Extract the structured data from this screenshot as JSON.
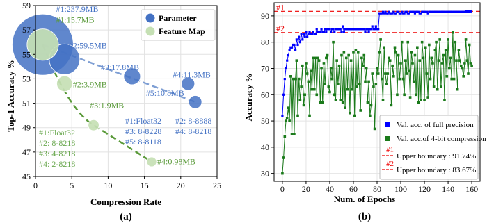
{
  "chart_data": [
    {
      "type": "scatter",
      "panel_label": "(a)",
      "xlabel": "Compression Rate",
      "ylabel": "Top-1 Accuracy %",
      "xlim": [
        0,
        25
      ],
      "ylim": [
        45,
        59
      ],
      "xticks": [
        0,
        5,
        10,
        15,
        20,
        25
      ],
      "yticks": [
        45,
        47,
        49,
        51,
        53,
        55,
        57,
        59
      ],
      "legend_position": "top-right",
      "series": [
        {
          "name": "Parameter",
          "color": "#4472c4",
          "points": [
            {
              "x": 1,
              "y": 55.8,
              "size_mb": 237.9,
              "label": "#1:237.9MB"
            },
            {
              "x": 4,
              "y": 54.6,
              "size_mb": 59.5,
              "label": "#2:59.5MB"
            },
            {
              "x": 13.3,
              "y": 53.2,
              "size_mb": 17.8,
              "label": "#3:17.8MB"
            },
            {
              "x": 21,
              "y": 52.6,
              "size_mb": 11.3,
              "label": "#4:11.3MB"
            },
            {
              "x": 22,
              "y": 51.1,
              "size_mb": 10.8,
              "label": "#5:10.8MB"
            }
          ]
        },
        {
          "name": "Feature Map",
          "color": "#70ad47",
          "points": [
            {
              "x": 1,
              "y": 55.8,
              "size_mb": 15.7,
              "label": "#1:15.7MB"
            },
            {
              "x": 4,
              "y": 52.6,
              "size_mb": 3.9,
              "label": "#2:3.9MB"
            },
            {
              "x": 8,
              "y": 49.2,
              "size_mb": 1.9,
              "label": "#3:1.9MB"
            },
            {
              "x": 16,
              "y": 46.2,
              "size_mb": 0.98,
              "label": "#4:0.98MB"
            }
          ]
        }
      ],
      "annotations_param": [
        "#1:Float32",
        "#2: 8-8888",
        "#3: 8-8228",
        "#4: 8-8218",
        "#5: 8-8118"
      ],
      "annotations_feature": [
        "#1:Float32",
        "#2: 8-8218",
        "#3: 4-8218",
        "#4: 2-8218"
      ]
    },
    {
      "type": "line",
      "panel_label": "(b)",
      "xlabel": "Num. of Epochs",
      "ylabel": "Accuracy %",
      "xlim": [
        -7,
        167
      ],
      "ylim": [
        27,
        95
      ],
      "xticks": [
        0,
        20,
        40,
        60,
        80,
        100,
        120,
        140,
        160
      ],
      "yticks": [
        30,
        40,
        50,
        60,
        70,
        80,
        90
      ],
      "legend_position": "bottom-right",
      "series": [
        {
          "name": "Val. acc. of full precision",
          "color": "#0000ff",
          "marker": "square",
          "values": [
            52,
            60,
            66,
            70,
            73,
            75,
            77,
            78,
            78,
            79,
            79,
            77,
            81,
            79,
            82,
            80,
            83,
            81,
            83,
            82,
            84,
            82,
            83,
            84,
            83,
            83,
            84,
            83,
            83,
            85,
            84,
            84,
            84,
            85,
            84,
            84,
            85,
            84,
            85,
            85,
            85,
            84,
            85,
            85,
            84,
            85,
            85,
            85,
            85,
            85,
            84,
            86,
            84,
            85,
            85,
            85,
            85,
            85,
            85,
            85,
            85,
            85,
            85,
            85,
            85,
            85,
            85,
            85,
            85,
            85,
            84,
            85,
            85,
            84,
            85,
            85,
            86,
            85,
            85,
            86,
            85,
            85,
            91,
            91,
            91,
            91.5,
            91,
            91.5,
            91,
            91,
            91.5,
            91,
            91,
            91,
            91.5,
            91,
            91,
            91.5,
            91.5,
            91,
            91,
            91.5,
            91,
            91,
            91.5,
            91.5,
            91,
            91,
            91.5,
            91.5,
            91.5,
            91.5,
            91,
            91.5,
            91.5,
            91.5,
            91,
            91,
            91.5,
            91.5,
            91.5,
            91.5,
            91.5,
            91,
            91.5,
            91.5,
            91.5,
            91.5,
            91.5,
            91.5,
            91.5,
            91.5,
            91.5,
            91.5,
            91.5,
            91.5,
            91.5,
            91.5,
            91.5,
            91.5,
            91.5,
            91.5,
            91.5,
            91.5,
            91.5,
            91.5,
            91.5,
            91.5,
            91.5,
            91.5,
            91.5,
            91.5,
            91.5,
            91.5,
            91.5,
            91.7,
            91.7,
            91.7,
            91.7,
            91.74
          ]
        },
        {
          "name": "Val. acc.of 4-bit compression",
          "color": "#1a7a1a",
          "marker": "square",
          "values": [
            30,
            36,
            44,
            50,
            51,
            55,
            50,
            67,
            45,
            66,
            45,
            66,
            73,
            52,
            66,
            58,
            63,
            71,
            56,
            60,
            72,
            68,
            65,
            52,
            69,
            62,
            74,
            62,
            74,
            60,
            74,
            73,
            57,
            70,
            57,
            72,
            64,
            74,
            75,
            63,
            61,
            70,
            66,
            80,
            60,
            58,
            73,
            64,
            71,
            58,
            75,
            57,
            76,
            55,
            74,
            62,
            75,
            53,
            73,
            62,
            76,
            52,
            77,
            63,
            76,
            64,
            54,
            74,
            71,
            75,
            65,
            70,
            57,
            65,
            52,
            56,
            68,
            63,
            47,
            64,
            70,
            68,
            76,
            81,
            66,
            58,
            78,
            68,
            64,
            68,
            74,
            73,
            56,
            71,
            67,
            78,
            76,
            60,
            75,
            66,
            72,
            80,
            66,
            60,
            73,
            68,
            80,
            69,
            59,
            76,
            72,
            65,
            75,
            60,
            78,
            57,
            73,
            58,
            80,
            74,
            58,
            78,
            68,
            59,
            79,
            66,
            74,
            72,
            63,
            77,
            80,
            62,
            73,
            81,
            63,
            72,
            75,
            58,
            77,
            67,
            81,
            70,
            74,
            66,
            83.67,
            66,
            80,
            73,
            62,
            77,
            73,
            71,
            70,
            67,
            72,
            81,
            73,
            68,
            79,
            72,
            71
          ]
        }
      ],
      "boundaries": [
        {
          "tag": "#1",
          "label": "Upper boundary : 91.74%",
          "value": 91.74,
          "color": "#ee0000"
        },
        {
          "tag": "#2",
          "label": "Upper boundary : 83.67%",
          "value": 83.67,
          "color": "#ee0000"
        }
      ]
    }
  ]
}
